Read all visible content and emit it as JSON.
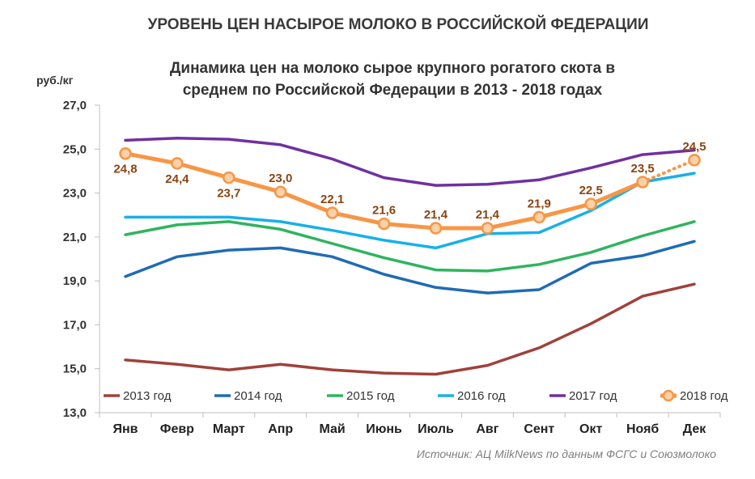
{
  "page_title": "УРОВЕНЬ ЦЕН НАСЫРОЕ МОЛОКО В РОССИЙСКОЙ ФЕДЕРАЦИИ",
  "source": "Источник: АЦ MilkNews по данным ФСГС и Союзмолоко",
  "chart_data": {
    "type": "line",
    "title_line1": "Динамика цен на молоко сырое крупного рогатого скота в",
    "title_line2": "среднем по Российской Федерации в 2013 - 2018 годах",
    "ylabel": "руб./кг",
    "ylim": [
      13,
      27
    ],
    "yticks": [
      "13,0",
      "15,0",
      "17,0",
      "19,0",
      "21,0",
      "23,0",
      "25,0",
      "27,0"
    ],
    "ytick_values": [
      13,
      15,
      17,
      19,
      21,
      23,
      25,
      27
    ],
    "categories": [
      "Янв",
      "Февр",
      "Март",
      "Апр",
      "Май",
      "Июнь",
      "Июль",
      "Авг",
      "Сент",
      "Окт",
      "Нояб",
      "Дек"
    ],
    "grid": false,
    "legend_position": "bottom",
    "series": [
      {
        "name": "2013 год",
        "color": "#A0413A",
        "values": [
          15.4,
          15.2,
          14.95,
          15.2,
          14.95,
          14.8,
          14.75,
          15.15,
          15.95,
          17.05,
          18.3,
          18.85
        ]
      },
      {
        "name": "2014 год",
        "color": "#1F6BB5",
        "values": [
          19.2,
          20.1,
          20.4,
          20.5,
          20.1,
          19.3,
          18.7,
          18.45,
          18.6,
          19.8,
          20.15,
          20.8
        ]
      },
      {
        "name": "2015 год",
        "color": "#2EB45F",
        "values": [
          21.1,
          21.55,
          21.7,
          21.35,
          20.7,
          20.05,
          19.5,
          19.45,
          19.75,
          20.3,
          21.05,
          21.7
        ]
      },
      {
        "name": "2016 год",
        "color": "#17B0EA",
        "values": [
          21.9,
          21.9,
          21.9,
          21.7,
          21.3,
          20.85,
          20.5,
          21.15,
          21.2,
          22.2,
          23.5,
          23.9
        ]
      },
      {
        "name": "2017 год",
        "color": "#7030A0",
        "values": [
          25.4,
          25.5,
          25.45,
          25.2,
          24.55,
          23.7,
          23.35,
          23.4,
          23.6,
          24.15,
          24.75,
          24.95
        ]
      },
      {
        "name": "2018 год",
        "color": "#F79646",
        "marker": "circle",
        "dotted_last_segment": true,
        "values": [
          24.8,
          24.35,
          23.7,
          23.05,
          22.1,
          21.6,
          21.4,
          21.4,
          21.9,
          22.5,
          23.5,
          24.5
        ]
      }
    ],
    "data_labels": {
      "series": "2018 год",
      "labels": [
        "24,8",
        "24,4",
        "23,7",
        "23,0",
        "22,1",
        "21,6",
        "21,4",
        "21,4",
        "21,9",
        "22,5",
        "23,5",
        "24,5"
      ]
    }
  }
}
